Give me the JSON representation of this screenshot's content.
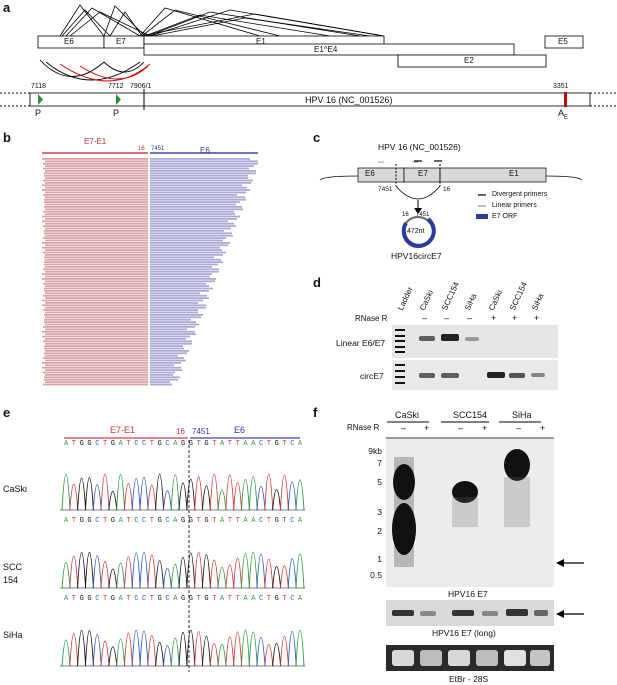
{
  "panels": {
    "a": "a",
    "b": "b",
    "c": "c",
    "d": "d",
    "e": "e",
    "f": "f"
  },
  "panel_a": {
    "exons": {
      "e6": "E6",
      "e7": "E7",
      "e1": "E1",
      "e1e4": "E1^E4",
      "e5": "E5",
      "e2": "E2"
    },
    "genome": "HPV 16 (NC_001526)",
    "coords": {
      "c7118": "7118",
      "c7712": "7712",
      "c7906": "7906/1",
      "c3351": "3351"
    },
    "promoter": "P",
    "polyA_main": "A",
    "polyA_sub": "E"
  },
  "panel_b": {
    "e7e1": "E7-E1",
    "n16": "16",
    "n7451": "7451",
    "e6": "E6"
  },
  "panel_c": {
    "title": "HPV 16 (NC_001526)",
    "e6": "E6",
    "e7": "E7",
    "e1": "E1",
    "n7451": "7451",
    "n16": "16",
    "circ_16": "16",
    "circ_7451": "7451",
    "circ_len": "472nt",
    "circ_name": "HPV16circE7",
    "legend": [
      "Divergent primers",
      "Linear primers",
      "E7 ORF"
    ]
  },
  "panel_d": {
    "lanes": [
      "Ladder",
      "CaSki",
      "SCC154",
      "SiHa",
      "CaSki",
      "SCC154",
      "SiHa"
    ],
    "rnase_label": "RNase R",
    "rnase": [
      "–",
      "–",
      "–",
      "+",
      "+",
      "+"
    ],
    "rows": [
      "Linear E6/E7",
      "circE7"
    ]
  },
  "panel_e": {
    "e7e1": "E7-E1",
    "n16": "16",
    "n7451": "7451",
    "e6": "E6",
    "sequence": [
      "A",
      "T",
      "G",
      "G",
      "C",
      "T",
      "G",
      "A",
      "T",
      "C",
      "C",
      "T",
      "G",
      "C",
      "A",
      "G",
      "G",
      "T",
      "G",
      "T",
      "A",
      "T",
      "T",
      "A",
      "A",
      "C",
      "T",
      "G",
      "T",
      "C",
      "A"
    ],
    "samples": [
      "CaSki",
      "SCC",
      "154",
      "SiHa"
    ]
  },
  "panel_f": {
    "cells": [
      "CaSki",
      "SCC154",
      "SiHa"
    ],
    "rnase_label": "RNase R",
    "signs": [
      "–",
      "+",
      "–",
      "+",
      "–",
      "+"
    ],
    "ladder": [
      "9kb",
      "7",
      "5",
      "3",
      "2",
      "1",
      "0.5"
    ],
    "blot_labels": [
      "HPV16 E7",
      "HPV16 E7 (long)",
      "EtBr - 28S"
    ]
  }
}
